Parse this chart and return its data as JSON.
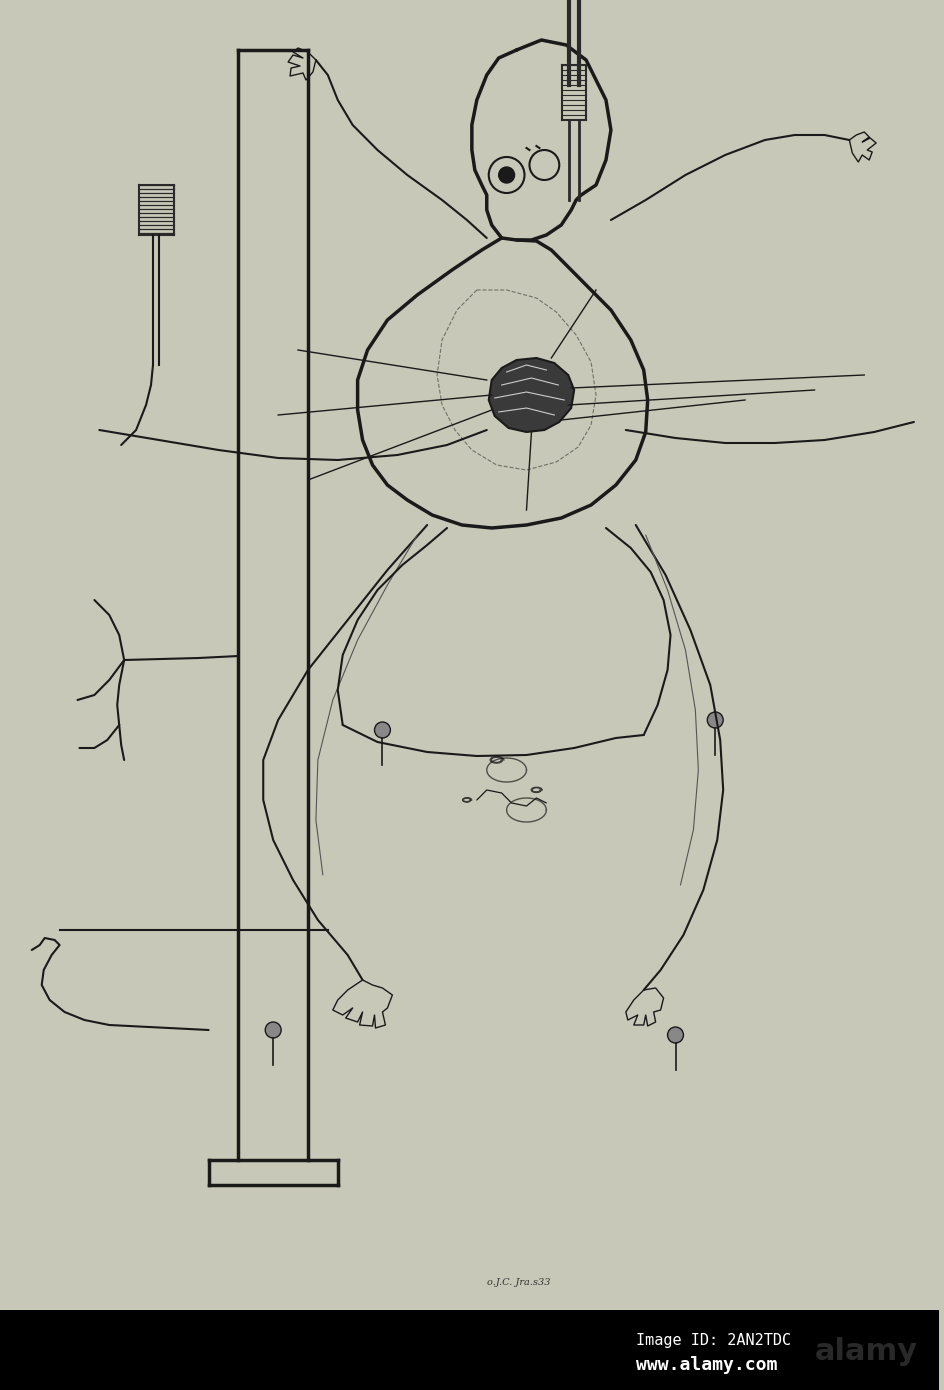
{
  "bg_color": "#c8c8b8",
  "fig_width": 9.45,
  "fig_height": 13.9,
  "dpi": 100,
  "line_color": "#1a1a1a",
  "dark_color": "#2a2a2a",
  "watermark_bg": "#000000",
  "watermark_text1": "Image ID: 2AN2TDC",
  "watermark_text2": "www.alamy.com",
  "signature_text": "o.J.C. Jra.s33"
}
